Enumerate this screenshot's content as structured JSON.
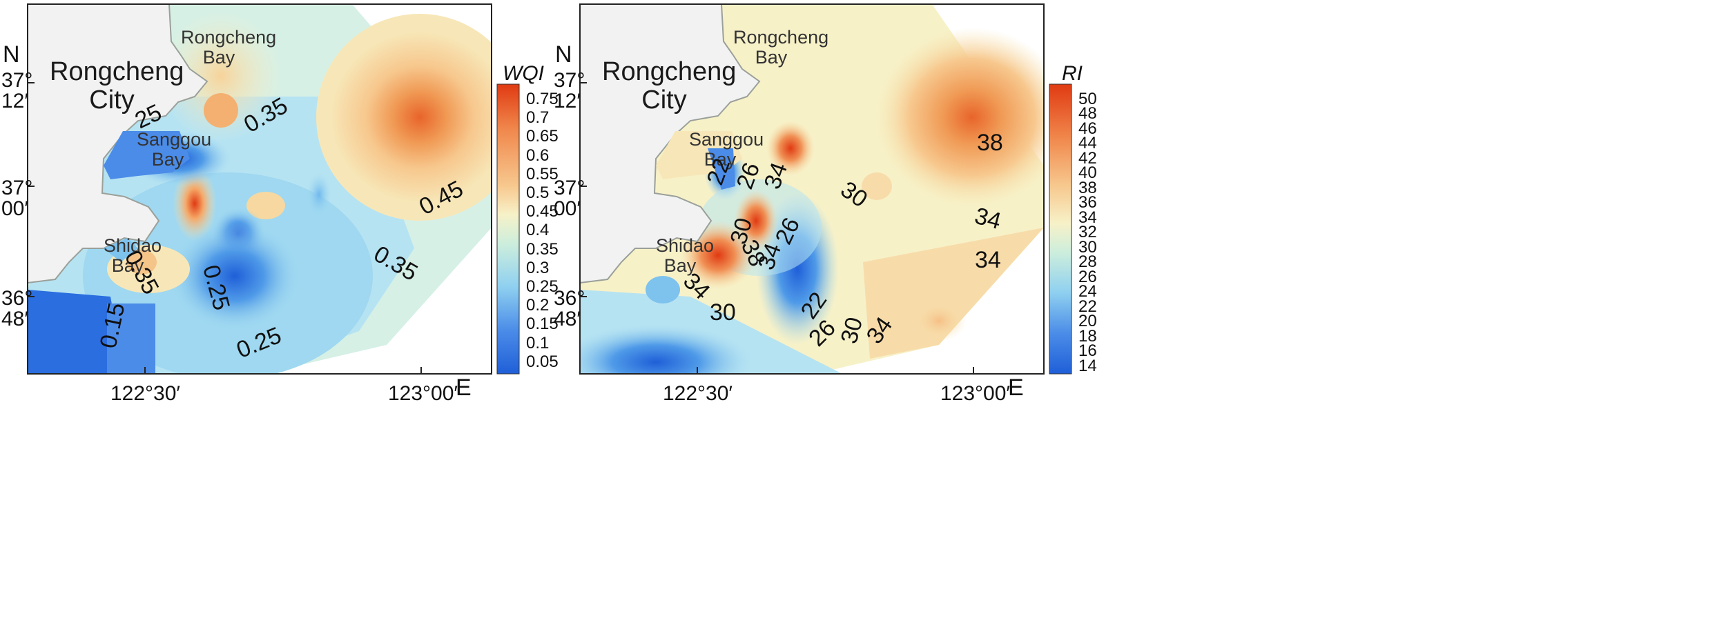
{
  "colors": {
    "land": "#f2f2f2",
    "coast": "#9aa09a",
    "low": "#1f6fe6",
    "mid_low": "#9fd8f0",
    "mid": "#f7f3c8",
    "mid_high": "#f6c88a",
    "high": "#e8642a",
    "extreme": "#e03a12"
  },
  "maps": [
    {
      "id": "wqi",
      "colorbar_title": "WQI",
      "colorbar_ticks": [
        "0.75",
        "0.7",
        "0.65",
        "0.6",
        "0.55",
        "0.5",
        "0.45",
        "0.4",
        "0.35",
        "0.3",
        "0.25",
        "0.2",
        "0.15",
        "0.1",
        "0.05"
      ],
      "x_ticks": [
        "122°30′",
        "123°00′"
      ],
      "east_label": "E",
      "north_label": "N",
      "y_ticks": [
        {
          "deg": "37°",
          "min": "12′"
        },
        {
          "deg": "37°",
          "min": "00′"
        },
        {
          "deg": "36°",
          "min": "48′"
        }
      ],
      "city": "Rongcheng City",
      "bays": [
        "Rongcheng Bay",
        "Sanggou Bay",
        "Shidao Bay"
      ],
      "contours": [
        "25",
        "0.35",
        "0.45",
        "0.35",
        "0.35",
        "0.25",
        "0.15",
        "0.25"
      ]
    },
    {
      "id": "ri",
      "colorbar_title": "RI",
      "colorbar_ticks": [
        "50",
        "48",
        "46",
        "44",
        "42",
        "40",
        "38",
        "36",
        "34",
        "32",
        "30",
        "28",
        "26",
        "24",
        "22",
        "20",
        "18",
        "16",
        "14"
      ],
      "x_ticks": [
        "122°30′",
        "123°00′"
      ],
      "east_label": "E",
      "north_label": "N",
      "y_ticks": [
        {
          "deg": "37°",
          "min": "12′"
        },
        {
          "deg": "37°",
          "min": "00′"
        },
        {
          "deg": "36°",
          "min": "48′"
        }
      ],
      "city": "Rongcheng City",
      "bays": [
        "Rongcheng Bay",
        "Sanggou Bay",
        "Shidao Bay"
      ],
      "contours": [
        "22",
        "26",
        "34",
        "30",
        "38",
        "30",
        "38",
        "34",
        "26",
        "34",
        "34",
        "34",
        "30",
        "22",
        "26",
        "30",
        "34"
      ]
    }
  ]
}
